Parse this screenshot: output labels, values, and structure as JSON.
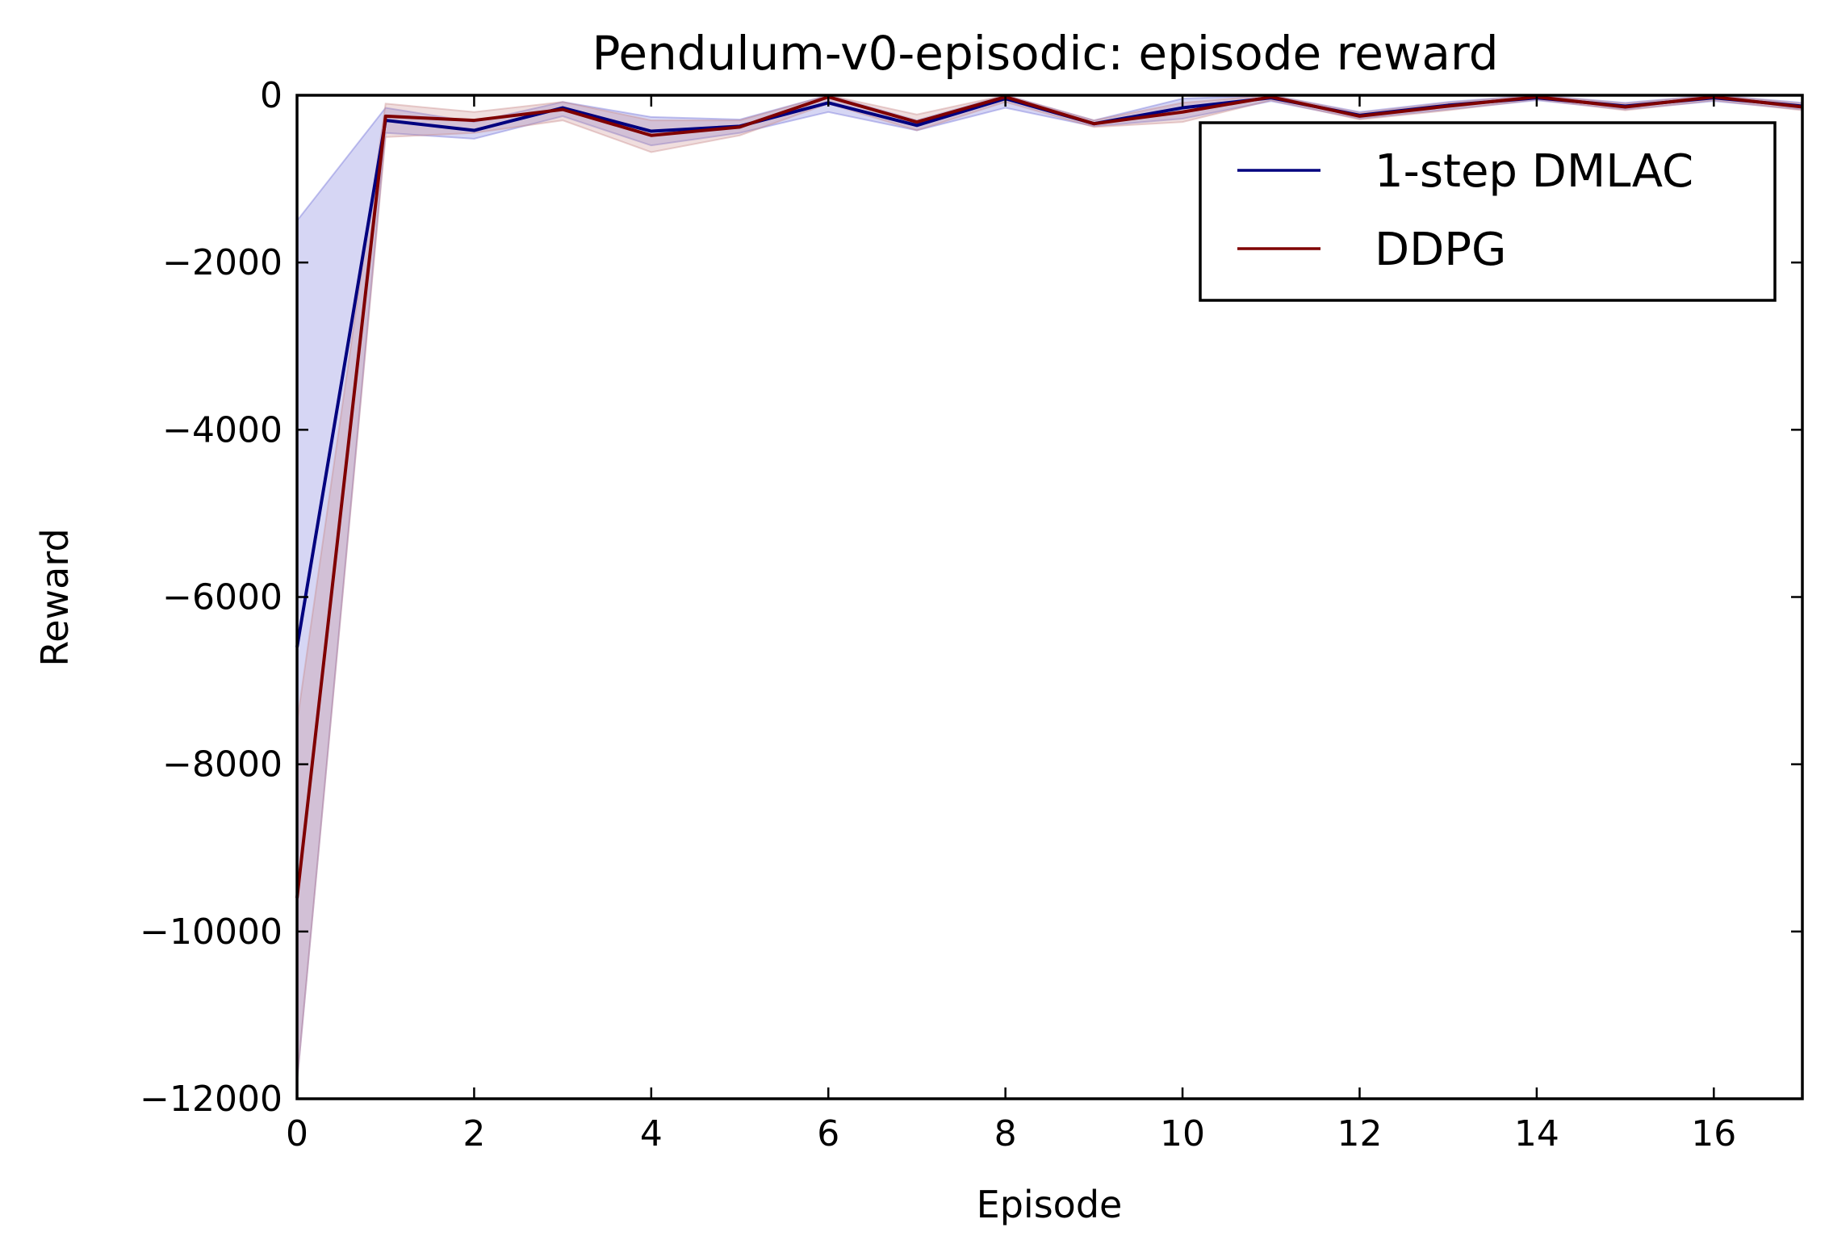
{
  "chart_data": {
    "type": "line",
    "title": "Pendulum-v0-episodic: episode reward",
    "xlabel": "Episode",
    "ylabel": "Reward",
    "xlim": [
      0,
      17
    ],
    "ylim": [
      -12000,
      0
    ],
    "xticks": [
      0,
      2,
      4,
      6,
      8,
      10,
      12,
      14,
      16
    ],
    "yticks": [
      0,
      -2000,
      -4000,
      -6000,
      -8000,
      -10000,
      -12000
    ],
    "xtick_labels": [
      "0",
      "2",
      "4",
      "6",
      "8",
      "10",
      "12",
      "14",
      "16"
    ],
    "ytick_labels": [
      "0",
      "−2000",
      "−4000",
      "−6000",
      "−8000",
      "−10000",
      "−12000"
    ],
    "grid": false,
    "legend_position": "upper right",
    "x": [
      0,
      1,
      2,
      3,
      4,
      5,
      6,
      7,
      8,
      9,
      10,
      11,
      12,
      13,
      14,
      15,
      16,
      17
    ],
    "series": [
      {
        "name": "1-step DMLAC",
        "color": "#00007f",
        "band_color": "#6b6bd8",
        "values": [
          -6600,
          -300,
          -420,
          -150,
          -430,
          -370,
          -90,
          -360,
          -40,
          -340,
          -150,
          -30,
          -240,
          -120,
          -30,
          -130,
          -30,
          -130
        ],
        "lower": [
          -11800,
          -450,
          -520,
          -250,
          -600,
          -450,
          -200,
          -420,
          -150,
          -370,
          -280,
          -70,
          -280,
          -170,
          -60,
          -170,
          -70,
          -170
        ],
        "upper": [
          -1500,
          -150,
          -320,
          -80,
          -260,
          -290,
          0,
          -300,
          0,
          -300,
          -40,
          0,
          -200,
          -80,
          0,
          -90,
          0,
          -90
        ]
      },
      {
        "name": "DDPG",
        "color": "#7f0000",
        "band_color": "#c98a8a",
        "values": [
          -9600,
          -250,
          -300,
          -170,
          -480,
          -380,
          -20,
          -320,
          -20,
          -340,
          -200,
          -20,
          -250,
          -130,
          -20,
          -140,
          -20,
          -140
        ],
        "lower": [
          -11800,
          -500,
          -450,
          -300,
          -680,
          -480,
          -100,
          -420,
          -80,
          -380,
          -320,
          -60,
          -290,
          -180,
          -50,
          -180,
          -60,
          -180
        ],
        "upper": [
          -7500,
          -100,
          -200,
          -80,
          -300,
          -300,
          0,
          -230,
          0,
          -300,
          -90,
          0,
          -210,
          -90,
          0,
          -100,
          0,
          -100
        ]
      }
    ]
  }
}
